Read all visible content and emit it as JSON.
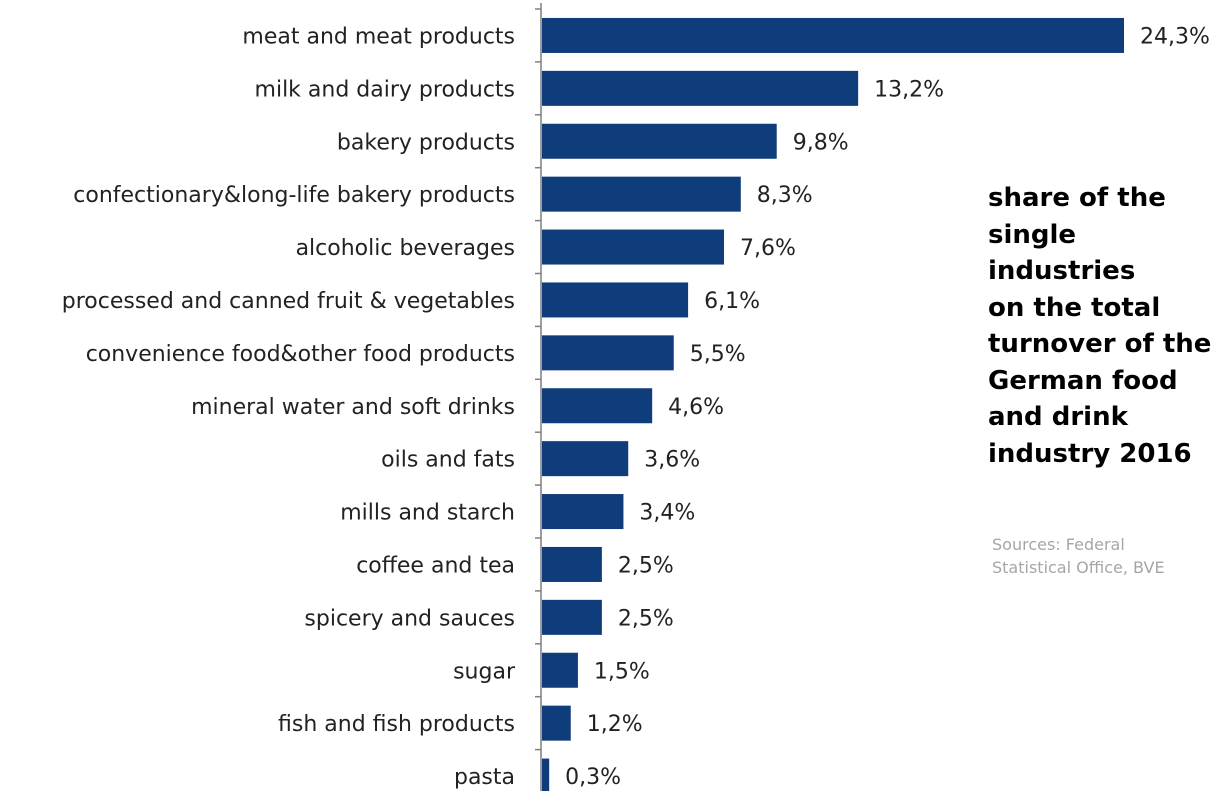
{
  "chart_data": {
    "type": "bar",
    "orientation": "horizontal",
    "title": "share of the\nsingle industries\non the total\nturnover of the\nGerman food\nand drink\nindustry 2016",
    "source": "Sources: Federal\nStatistical Office, BVE",
    "xlabel": "",
    "ylabel": "",
    "xlim": [
      0,
      24.3
    ],
    "grid": false,
    "legend": "none",
    "bar_color": "#0f3c7a",
    "categories": [
      "meat and meat products",
      "milk and dairy products",
      "bakery products",
      "confectionary&long-life bakery products",
      "alcoholic beverages",
      "processed and canned fruit & vegetables",
      "convenience food&other food products",
      "mineral water and soft drinks",
      "oils and fats",
      "mills and starch",
      "coffee and tea",
      "spicery and sauces",
      "sugar",
      "fish and fish products",
      "pasta"
    ],
    "values": [
      24.3,
      13.2,
      9.8,
      8.3,
      7.6,
      6.1,
      5.5,
      4.6,
      3.6,
      3.4,
      2.5,
      2.5,
      1.5,
      1.2,
      0.3
    ],
    "data_labels": [
      "24,3%",
      "13,2%",
      "9,8%",
      "8,3%",
      "7,6%",
      "6,1%",
      "5,5%",
      "4,6%",
      "3,6%",
      "3,4%",
      "2,5%",
      "2,5%",
      "1,5%",
      "1,2%",
      "0,3%"
    ]
  }
}
